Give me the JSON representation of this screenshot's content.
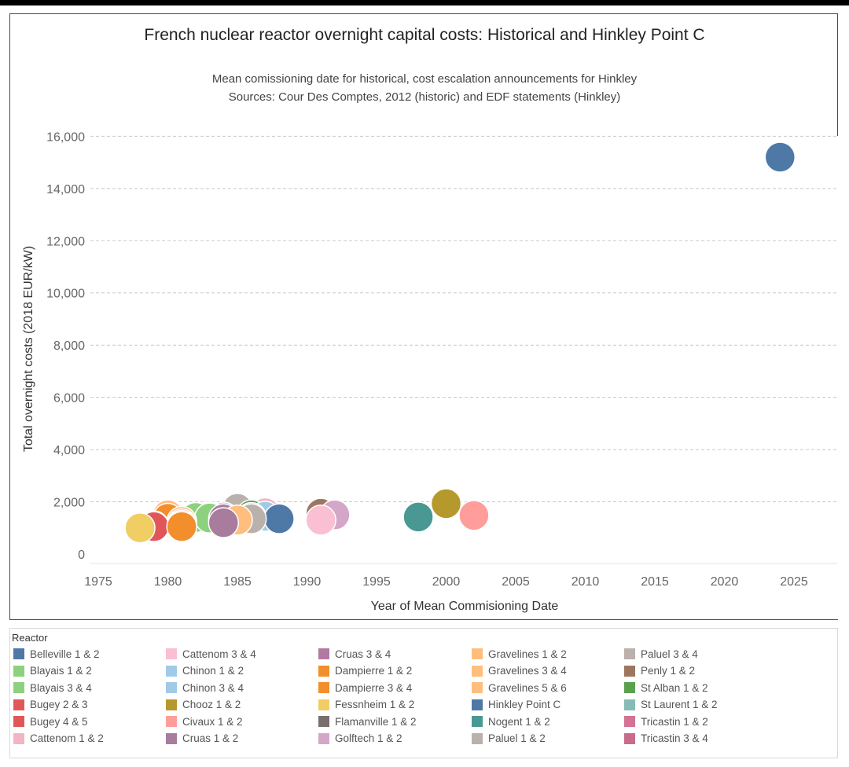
{
  "chart_data": {
    "type": "scatter",
    "title": "French nuclear reactor overnight capital costs: Historical and Hinkley Point C",
    "subtitle": [
      "Mean comissioning date for historical, cost escalation announcements for Hinkley",
      "Sources: Cour Des Comptes, 2012 (historic) and EDF statements (Hinkley)"
    ],
    "xlabel": "Year of Mean Commisioning Date",
    "ylabel": "Total overnight costs (2018 EUR/kW)",
    "xlim": [
      1972,
      2028
    ],
    "ylim": [
      -350,
      16600
    ],
    "xticks": [
      1975,
      1980,
      1985,
      1990,
      1995,
      2000,
      2005,
      2010,
      2015,
      2020,
      2025
    ],
    "xtick_labels": [
      "1975",
      "1980",
      "1985",
      "1990",
      "1995",
      "2000",
      "2005",
      "2010",
      "2015",
      "2020",
      "2025"
    ],
    "yticks": [
      0,
      2000,
      4000,
      6000,
      8000,
      10000,
      12000,
      14000,
      16000
    ],
    "ytick_labels": [
      "0",
      "2,000",
      "4,000",
      "6,000",
      "8,000",
      "10,000",
      "12,000",
      "14,000",
      "16,000"
    ],
    "grid": "horizontal dashed",
    "legend_title": "Reactor",
    "legend_placement": "bottom",
    "series": [
      {
        "name": "Belleville 1 & 2",
        "color": "#4e79a7",
        "points": [
          {
            "x": 1988,
            "y": 1350
          }
        ]
      },
      {
        "name": "Blayais 1 & 2",
        "color": "#8cd17d",
        "points": [
          {
            "x": 1982,
            "y": 1400
          }
        ]
      },
      {
        "name": "Blayais 3 & 4",
        "color": "#8cd17d",
        "points": [
          {
            "x": 1983,
            "y": 1380
          }
        ]
      },
      {
        "name": "Bugey 2 & 3",
        "color": "#e15759",
        "points": [
          {
            "x": 1979,
            "y": 1050
          }
        ]
      },
      {
        "name": "Bugey 4 & 5",
        "color": "#e15759",
        "points": [
          {
            "x": 1979,
            "y": 1080
          }
        ]
      },
      {
        "name": "Cattenom 1 & 2",
        "color": "#f1b5c6",
        "points": [
          {
            "x": 1987,
            "y": 1580
          }
        ]
      },
      {
        "name": "Cattenom 3 & 4",
        "color": "#fabfd2",
        "points": [
          {
            "x": 1991,
            "y": 1300
          }
        ]
      },
      {
        "name": "Chinon 1 & 2",
        "color": "#a0cbe8",
        "points": [
          {
            "x": 1984,
            "y": 1420
          }
        ]
      },
      {
        "name": "Chinon 3 & 4",
        "color": "#a0cbe8",
        "points": [
          {
            "x": 1987,
            "y": 1450
          }
        ]
      },
      {
        "name": "Chooz 1 & 2",
        "color": "#b6992d",
        "points": [
          {
            "x": 2000,
            "y": 1930
          }
        ]
      },
      {
        "name": "Civaux 1 & 2",
        "color": "#ff9d9a",
        "points": [
          {
            "x": 2002,
            "y": 1480
          }
        ]
      },
      {
        "name": "Cruas 1 & 2",
        "color": "#a77c9c",
        "points": [
          {
            "x": 1984,
            "y": 1200
          }
        ]
      },
      {
        "name": "Cruas 3 & 4",
        "color": "#b07aa1",
        "points": [
          {
            "x": 1984,
            "y": 1350
          }
        ]
      },
      {
        "name": "Dampierre 1 & 2",
        "color": "#f28e2b",
        "points": [
          {
            "x": 1980,
            "y": 1370
          }
        ]
      },
      {
        "name": "Dampierre 3 & 4",
        "color": "#f28e2b",
        "points": [
          {
            "x": 1981,
            "y": 1050
          }
        ]
      },
      {
        "name": "Fessnheim 1 & 2",
        "color": "#f1ce63",
        "points": [
          {
            "x": 1978,
            "y": 1000
          }
        ]
      },
      {
        "name": "Flamanville 1 & 2",
        "color": "#79706e",
        "points": [
          {
            "x": 1986,
            "y": 1400
          }
        ]
      },
      {
        "name": "Golftech 1 & 2",
        "color": "#d4a6c8",
        "points": [
          {
            "x": 1992,
            "y": 1500
          }
        ]
      },
      {
        "name": "Gravelines 1 & 2",
        "color": "#ffbe7d",
        "points": [
          {
            "x": 1980,
            "y": 1500
          }
        ]
      },
      {
        "name": "Gravelines 3 & 4",
        "color": "#ffbe7d",
        "points": [
          {
            "x": 1981,
            "y": 1250
          }
        ]
      },
      {
        "name": "Gravelines 5 & 6",
        "color": "#ffbe7d",
        "points": [
          {
            "x": 1985,
            "y": 1300
          }
        ]
      },
      {
        "name": "Hinkley Point C",
        "color": "#4e79a7",
        "points": [
          {
            "x": 2024,
            "y": 15200
          }
        ]
      },
      {
        "name": "Nogent 1 & 2",
        "color": "#499894",
        "points": [
          {
            "x": 1998,
            "y": 1420
          }
        ]
      },
      {
        "name": "Paluel 1 & 2",
        "color": "#bab0ac",
        "points": [
          {
            "x": 1986,
            "y": 1350
          }
        ]
      },
      {
        "name": "Paluel 3 & 4",
        "color": "#bab0ac",
        "points": [
          {
            "x": 1985,
            "y": 1750
          }
        ]
      },
      {
        "name": "Penly 1 & 2",
        "color": "#9d7660",
        "points": [
          {
            "x": 1991,
            "y": 1560
          }
        ]
      },
      {
        "name": "St Alban 1 & 2",
        "color": "#59a14f",
        "points": [
          {
            "x": 1986,
            "y": 1500
          }
        ]
      },
      {
        "name": "St Laurent 1 & 2",
        "color": "#86bcb6",
        "points": [
          {
            "x": 1983,
            "y": 1420
          }
        ]
      },
      {
        "name": "Tricastin 1 & 2",
        "color": "#d37295",
        "points": [
          {
            "x": 1981,
            "y": 1100
          }
        ]
      },
      {
        "name": "Tricastin 3 & 4",
        "color": "#c96b8c",
        "points": [
          {
            "x": 1981,
            "y": 1150
          }
        ]
      }
    ],
    "legend_columns": [
      [
        "Belleville 1 & 2",
        "Blayais 1 & 2",
        "Blayais 3 & 4",
        "Bugey 2 & 3",
        "Bugey 4 & 5",
        "Cattenom 1 & 2"
      ],
      [
        "Cattenom 3 & 4",
        "Chinon 1 & 2",
        "Chinon 3 & 4",
        "Chooz 1 & 2",
        "Civaux 1 & 2",
        "Cruas 1 & 2"
      ],
      [
        "Cruas 3 & 4",
        "Dampierre 1 & 2",
        "Dampierre 3 & 4",
        "Fessnheim 1 & 2",
        "Flamanville 1 & 2",
        "Golftech 1 & 2"
      ],
      [
        "Gravelines 1 & 2",
        "Gravelines 3 & 4",
        "Gravelines 5 & 6",
        "Hinkley Point C",
        "Nogent 1 & 2",
        "Paluel 1 & 2"
      ],
      [
        "Paluel 3 & 4",
        "Penly 1 & 2",
        "St Alban 1 & 2",
        "St Laurent 1 & 2",
        "Tricastin 1 & 2",
        "Tricastin 3 & 4"
      ]
    ]
  }
}
